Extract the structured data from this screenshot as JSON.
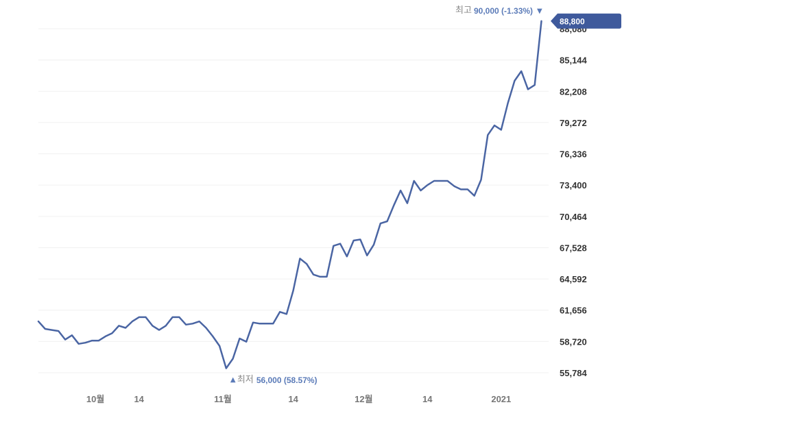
{
  "chart_data": {
    "type": "line",
    "colors": {
      "line": "#4a65a3",
      "badge": "#3f5a9c",
      "annotation": "#5b7bb8",
      "grid": "#f0f0f0"
    },
    "y_ticks": [
      55784,
      58720,
      61656,
      64592,
      67528,
      70464,
      73400,
      76336,
      79272,
      82208,
      85144,
      88080
    ],
    "y_tick_labels": [
      "55,784",
      "58,720",
      "61,656",
      "64,592",
      "67,528",
      "70,464",
      "73,400",
      "76,336",
      "79,272",
      "82,208",
      "85,144",
      "88,080"
    ],
    "ylim": [
      55784,
      88080
    ],
    "x_labels": [
      "10월",
      "14",
      "11월",
      "14",
      "12월",
      "14",
      "2021"
    ],
    "x_label_index": [
      8.5,
      15,
      27.5,
      38,
      48.5,
      58,
      69
    ],
    "grid": true,
    "series": [
      {
        "values": [
          60600,
          59900,
          59800,
          59700,
          58900,
          59300,
          58500,
          58600,
          58800,
          58800,
          59200,
          59500,
          60200,
          60000,
          60600,
          61000,
          61000,
          60200,
          59800,
          60200,
          61000,
          61000,
          60300,
          60400,
          60600,
          60000,
          59200,
          58300,
          56200,
          57100,
          59000,
          58700,
          60500,
          60400,
          60400,
          60400,
          61500,
          61300,
          63500,
          66500,
          66000,
          65000,
          64800,
          64800,
          67700,
          67900,
          66700,
          68200,
          68300,
          66800,
          67800,
          69800,
          70000,
          71500,
          72900,
          71700,
          73800,
          72900,
          73400,
          73800,
          73800,
          73800,
          73300,
          73000,
          73000,
          72400,
          73900,
          78100,
          79000,
          78600,
          81100,
          83200,
          84100,
          82400,
          82800,
          88800
        ]
      }
    ],
    "last_price": {
      "label": "88,800",
      "value": 88800
    },
    "annotations": {
      "high": {
        "label": "최고",
        "value_text": "90,000 (-1.33%)",
        "arrow": "▼"
      },
      "low": {
        "label": "최저",
        "value_text": "56,000 (58.57%)",
        "arrow": "▲",
        "index": 28
      }
    }
  }
}
